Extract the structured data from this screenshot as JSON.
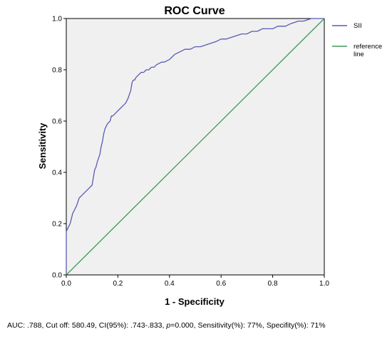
{
  "chart_data": {
    "type": "line",
    "title": "ROC Curve",
    "xlabel": "1 - Specificity",
    "ylabel": "Sensitivity",
    "xlim": [
      0,
      1
    ],
    "ylim": [
      0,
      1
    ],
    "x_ticks": [
      "0.0",
      "0.2",
      "0.4",
      "0.6",
      "0.8",
      "1.0"
    ],
    "y_ticks": [
      "0.0",
      "0.2",
      "0.4",
      "0.6",
      "0.8",
      "1.0"
    ],
    "grid": false,
    "legend_position": "right",
    "series": [
      {
        "name": "SII",
        "color": "#5a5ab4",
        "x": [
          0.0,
          0.0,
          0.005,
          0.01,
          0.015,
          0.02,
          0.025,
          0.03,
          0.04,
          0.05,
          0.06,
          0.07,
          0.08,
          0.09,
          0.1,
          0.105,
          0.11,
          0.115,
          0.12,
          0.13,
          0.135,
          0.14,
          0.145,
          0.15,
          0.155,
          0.16,
          0.17,
          0.175,
          0.18,
          0.19,
          0.2,
          0.21,
          0.22,
          0.23,
          0.24,
          0.25,
          0.255,
          0.26,
          0.265,
          0.27,
          0.28,
          0.29,
          0.3,
          0.31,
          0.32,
          0.33,
          0.34,
          0.35,
          0.37,
          0.38,
          0.4,
          0.41,
          0.42,
          0.44,
          0.46,
          0.48,
          0.5,
          0.52,
          0.55,
          0.58,
          0.6,
          0.62,
          0.65,
          0.68,
          0.7,
          0.72,
          0.74,
          0.76,
          0.8,
          0.82,
          0.85,
          0.87,
          0.9,
          0.92,
          0.95,
          0.97,
          1.0
        ],
        "y": [
          0.0,
          0.17,
          0.18,
          0.19,
          0.2,
          0.22,
          0.24,
          0.25,
          0.27,
          0.3,
          0.31,
          0.32,
          0.33,
          0.34,
          0.35,
          0.38,
          0.41,
          0.42,
          0.44,
          0.47,
          0.5,
          0.52,
          0.55,
          0.57,
          0.58,
          0.59,
          0.6,
          0.62,
          0.62,
          0.63,
          0.64,
          0.65,
          0.66,
          0.67,
          0.69,
          0.72,
          0.75,
          0.76,
          0.76,
          0.77,
          0.78,
          0.79,
          0.79,
          0.8,
          0.8,
          0.81,
          0.81,
          0.82,
          0.83,
          0.83,
          0.84,
          0.85,
          0.86,
          0.87,
          0.88,
          0.88,
          0.89,
          0.89,
          0.9,
          0.91,
          0.92,
          0.92,
          0.93,
          0.94,
          0.94,
          0.95,
          0.95,
          0.96,
          0.96,
          0.97,
          0.97,
          0.98,
          0.99,
          0.99,
          1.0,
          1.0,
          1.0
        ]
      },
      {
        "name": "reference line",
        "color": "#3c9a5a",
        "x": [
          0,
          1
        ],
        "y": [
          0,
          1
        ]
      }
    ],
    "legend": [
      {
        "lines": [
          "SII"
        ],
        "color": "#5a5ab4"
      },
      {
        "lines": [
          "reference",
          "line"
        ],
        "color": "#3c9a5a"
      }
    ],
    "plot_background": "#f0f0f0"
  },
  "footnote": {
    "pre": "AUC: .788, Cut off: 580.49, CI(95%): .743-.833, ",
    "p_symbol": "p",
    "post": "=0.000, Sensitivity(%): 77%, Specifity(%): 71%"
  }
}
